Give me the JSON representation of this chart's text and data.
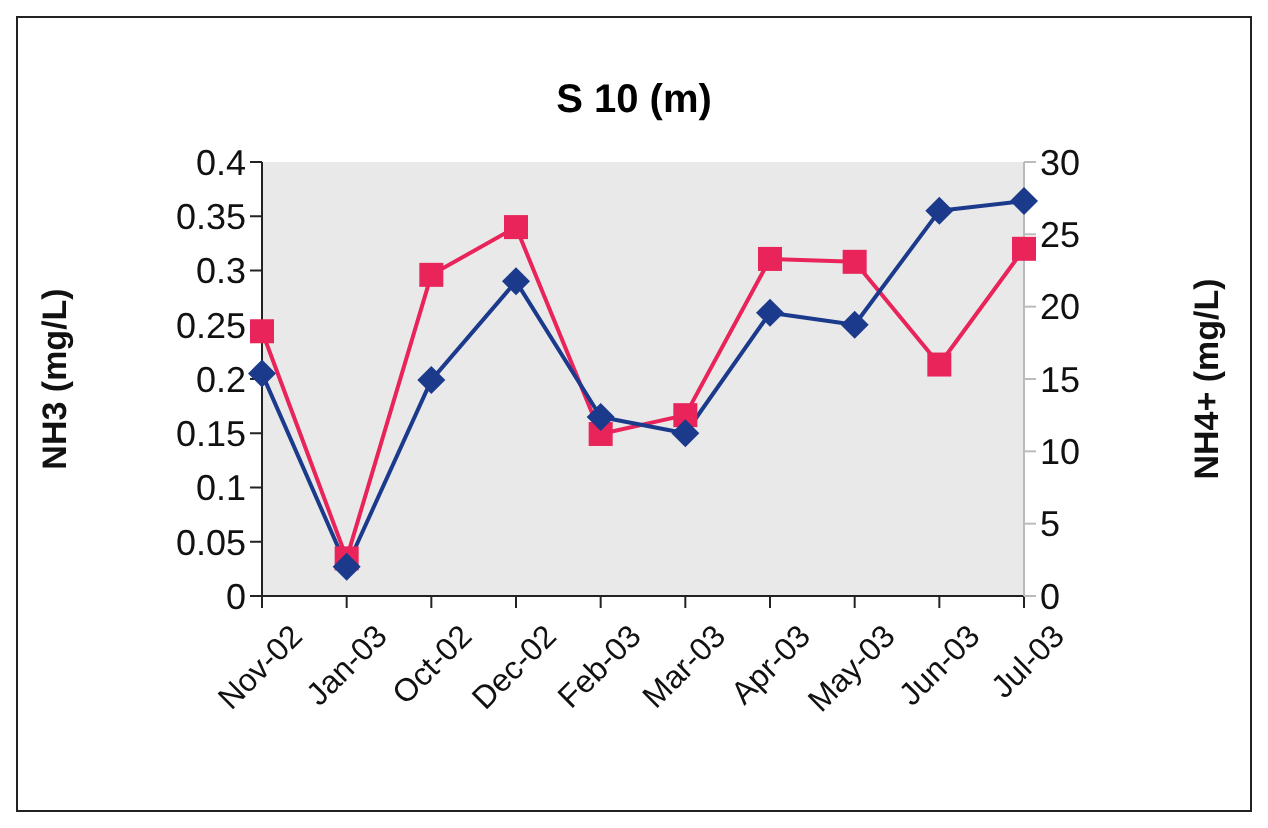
{
  "chart_data": {
    "type": "line",
    "title": "S 10 (m)",
    "ylabel": "NH3 (mg/L)",
    "y2label": "NH4+ (mg/L)",
    "categories": [
      "Nov-02",
      "Jan-03",
      "Oct-02",
      "Dec-02",
      "Feb-03",
      "Mar-03",
      "Apr-03",
      "May-03",
      "Jun-03",
      "Jul-03"
    ],
    "series": [
      {
        "color": "#1b3a8c",
        "marker": "diamond",
        "values": [
          0.205,
          0.027,
          0.199,
          0.29,
          0.165,
          0.15,
          0.261,
          0.25,
          0.355,
          0.364
        ]
      },
      {
        "color": "#e8245a",
        "marker": "square",
        "axis": "y2",
        "values": [
          18.3,
          2.6,
          22.2,
          25.5,
          11.2,
          12.5,
          23.3,
          23.1,
          16.0,
          24.0
        ]
      }
    ],
    "ylim": [
      0,
      0.4
    ],
    "yticks": [
      0,
      0.05,
      0.1,
      0.15,
      0.2,
      0.25,
      0.3,
      0.35,
      0.4
    ],
    "y2lim": [
      0,
      30
    ],
    "y2ticks": [
      0,
      5,
      10,
      15,
      20,
      25,
      30
    ],
    "grid": false,
    "legend": false,
    "line_style": "solid"
  }
}
